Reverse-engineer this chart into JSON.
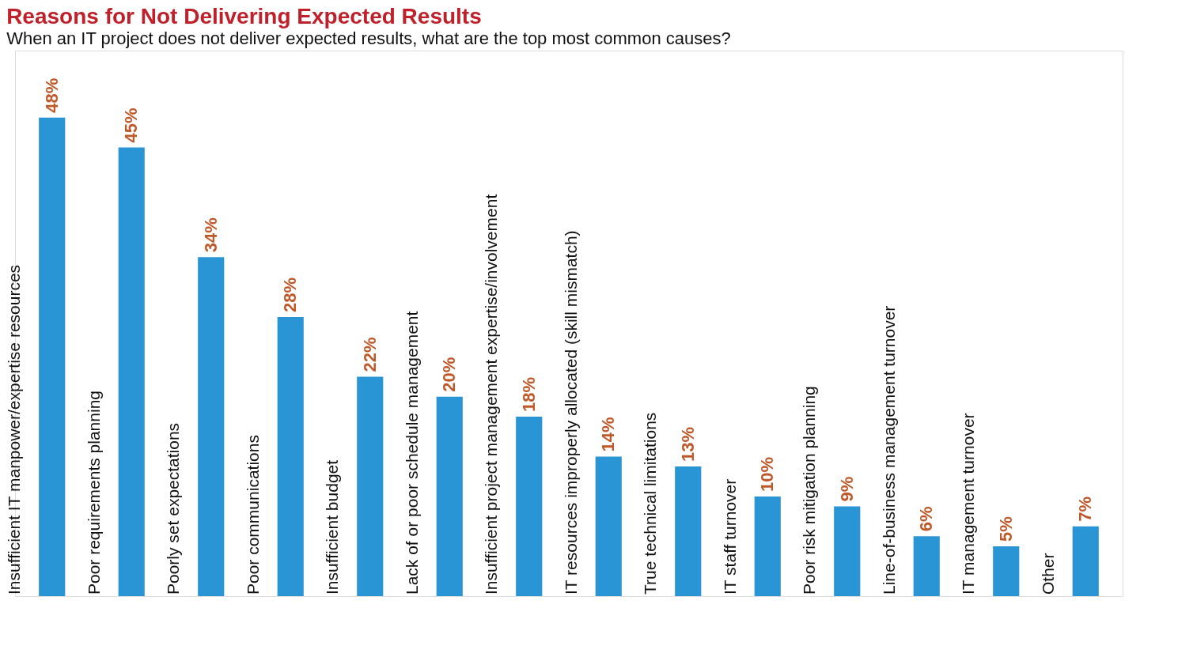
{
  "chart_data": {
    "type": "bar",
    "title": "Reasons for Not Delivering Expected Results",
    "subtitle": "When an IT project does not deliver expected results, what are the top most common causes?",
    "categories": [
      "Insufficient IT manpower/expertise resources",
      "Poor requirements planning",
      "Poorly set expectations",
      "Poor communications",
      "Insufficient budget",
      "Lack of or poor schedule management",
      "Insufficient project management expertise/involvement",
      "IT resources improperly allocated (skill mismatch)",
      "True technical limitations",
      "IT staff turnover",
      "Poor risk mitigation planning",
      "Line-of-business management turnover",
      "IT management turnover",
      "Other"
    ],
    "values": [
      48,
      45,
      34,
      28,
      22,
      20,
      18,
      14,
      13,
      10,
      9,
      6,
      5,
      7
    ],
    "value_labels": [
      "48%",
      "45%",
      "34%",
      "28%",
      "22%",
      "20%",
      "18%",
      "14%",
      "13%",
      "10%",
      "9%",
      "6%",
      "5%",
      "7%"
    ],
    "color": "#2a95d5"
  }
}
